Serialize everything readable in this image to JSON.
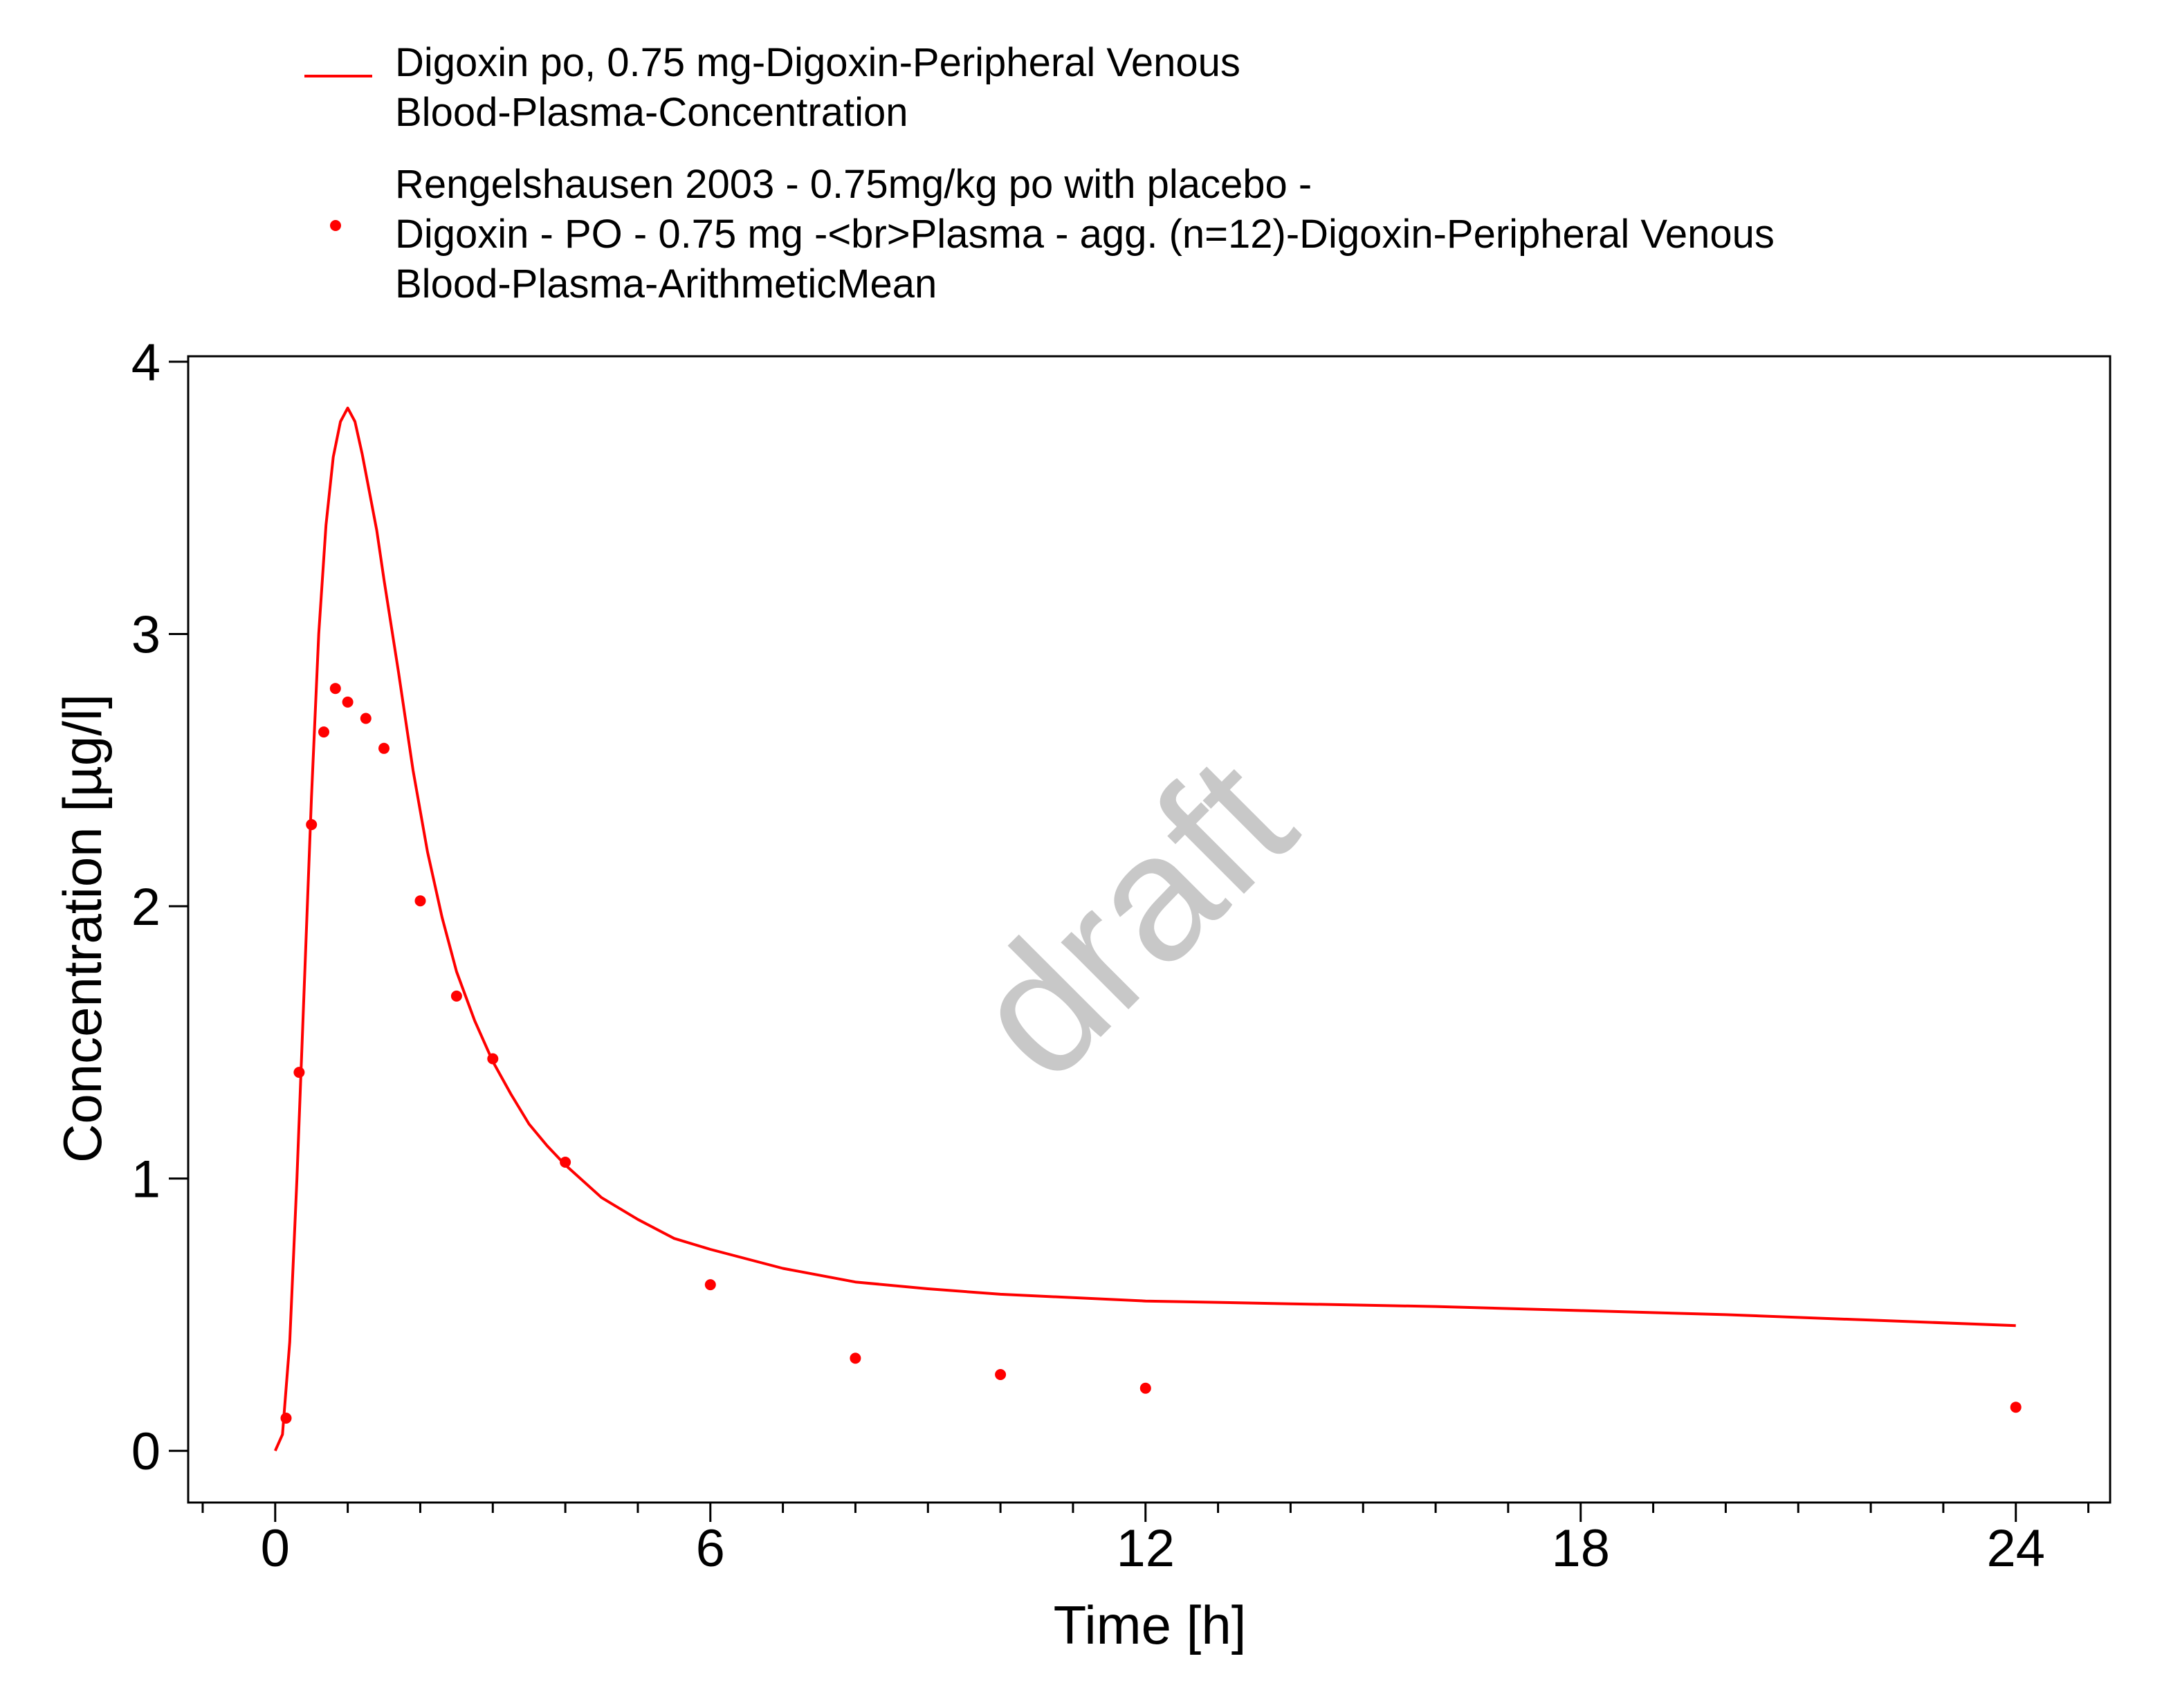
{
  "chart_data": {
    "type": "line",
    "xlabel": "Time [h]",
    "ylabel": "Concentration [µg/l]",
    "xlim": [
      -1.2,
      25.3
    ],
    "ylim": [
      -0.19,
      4.02
    ],
    "x_ticks": [
      0,
      6,
      12,
      18,
      24
    ],
    "x_tick_labels": [
      "0",
      "6",
      "12",
      "18",
      "24"
    ],
    "x_minor_step": 1,
    "y_ticks": [
      0,
      1,
      2,
      3,
      4
    ],
    "y_tick_labels": [
      "0",
      "1",
      "2",
      "3",
      "4"
    ],
    "grid": false,
    "legend_position": "top",
    "watermark": "draft",
    "series": [
      {
        "name": "Digoxin po, 0.75 mg-Digoxin-Peripheral Venous Blood-Plasma-Concentration",
        "legend_lines": [
          "Digoxin po, 0.75 mg-Digoxin-Peripheral Venous",
          "Blood-Plasma-Concentration"
        ],
        "style": "line",
        "color": "#ff0000",
        "x": [
          0,
          0.1,
          0.2,
          0.3,
          0.4,
          0.5,
          0.6,
          0.7,
          0.8,
          0.9,
          1.0,
          1.1,
          1.2,
          1.3,
          1.4,
          1.5,
          1.7,
          1.9,
          2.1,
          2.3,
          2.5,
          2.75,
          3.0,
          3.25,
          3.5,
          3.75,
          4.0,
          4.5,
          5.0,
          5.5,
          6.0,
          7.0,
          8.0,
          9.0,
          10.0,
          12.0,
          14.0,
          16.0,
          18.0,
          20.0,
          22.0,
          24.0
        ],
        "y": [
          0,
          0.06,
          0.4,
          1.0,
          1.7,
          2.4,
          3.0,
          3.4,
          3.65,
          3.78,
          3.83,
          3.78,
          3.66,
          3.52,
          3.38,
          3.2,
          2.86,
          2.5,
          2.2,
          1.96,
          1.76,
          1.58,
          1.43,
          1.31,
          1.2,
          1.12,
          1.05,
          0.93,
          0.85,
          0.78,
          0.74,
          0.67,
          0.62,
          0.595,
          0.575,
          0.55,
          0.54,
          0.53,
          0.515,
          0.5,
          0.48,
          0.46
        ]
      },
      {
        "name": "Rengelshausen 2003 - 0.75mg/kg po with placebo - Digoxin - PO - 0.75 mg -<br>Plasma - agg. (n=12)-Digoxin-Peripheral Venous Blood-Plasma-ArithmeticMean",
        "legend_lines": [
          "Rengelshausen 2003 - 0.75mg/kg po with placebo -",
          "Digoxin - PO - 0.75 mg -<br>Plasma - agg. (n=12)-Digoxin-Peripheral Venous",
          "Blood-Plasma-ArithmeticMean"
        ],
        "style": "scatter",
        "color": "#ff0000",
        "x": [
          0.15,
          0.33,
          0.5,
          0.67,
          0.83,
          1.0,
          1.25,
          1.5,
          2.0,
          2.5,
          3.0,
          4.0,
          6.0,
          8.0,
          10.0,
          12.0,
          24.0
        ],
        "y": [
          0.12,
          1.39,
          2.3,
          2.64,
          2.8,
          2.75,
          2.69,
          2.58,
          2.02,
          1.67,
          1.44,
          1.06,
          0.61,
          0.34,
          0.28,
          0.23,
          0.16
        ]
      }
    ]
  }
}
